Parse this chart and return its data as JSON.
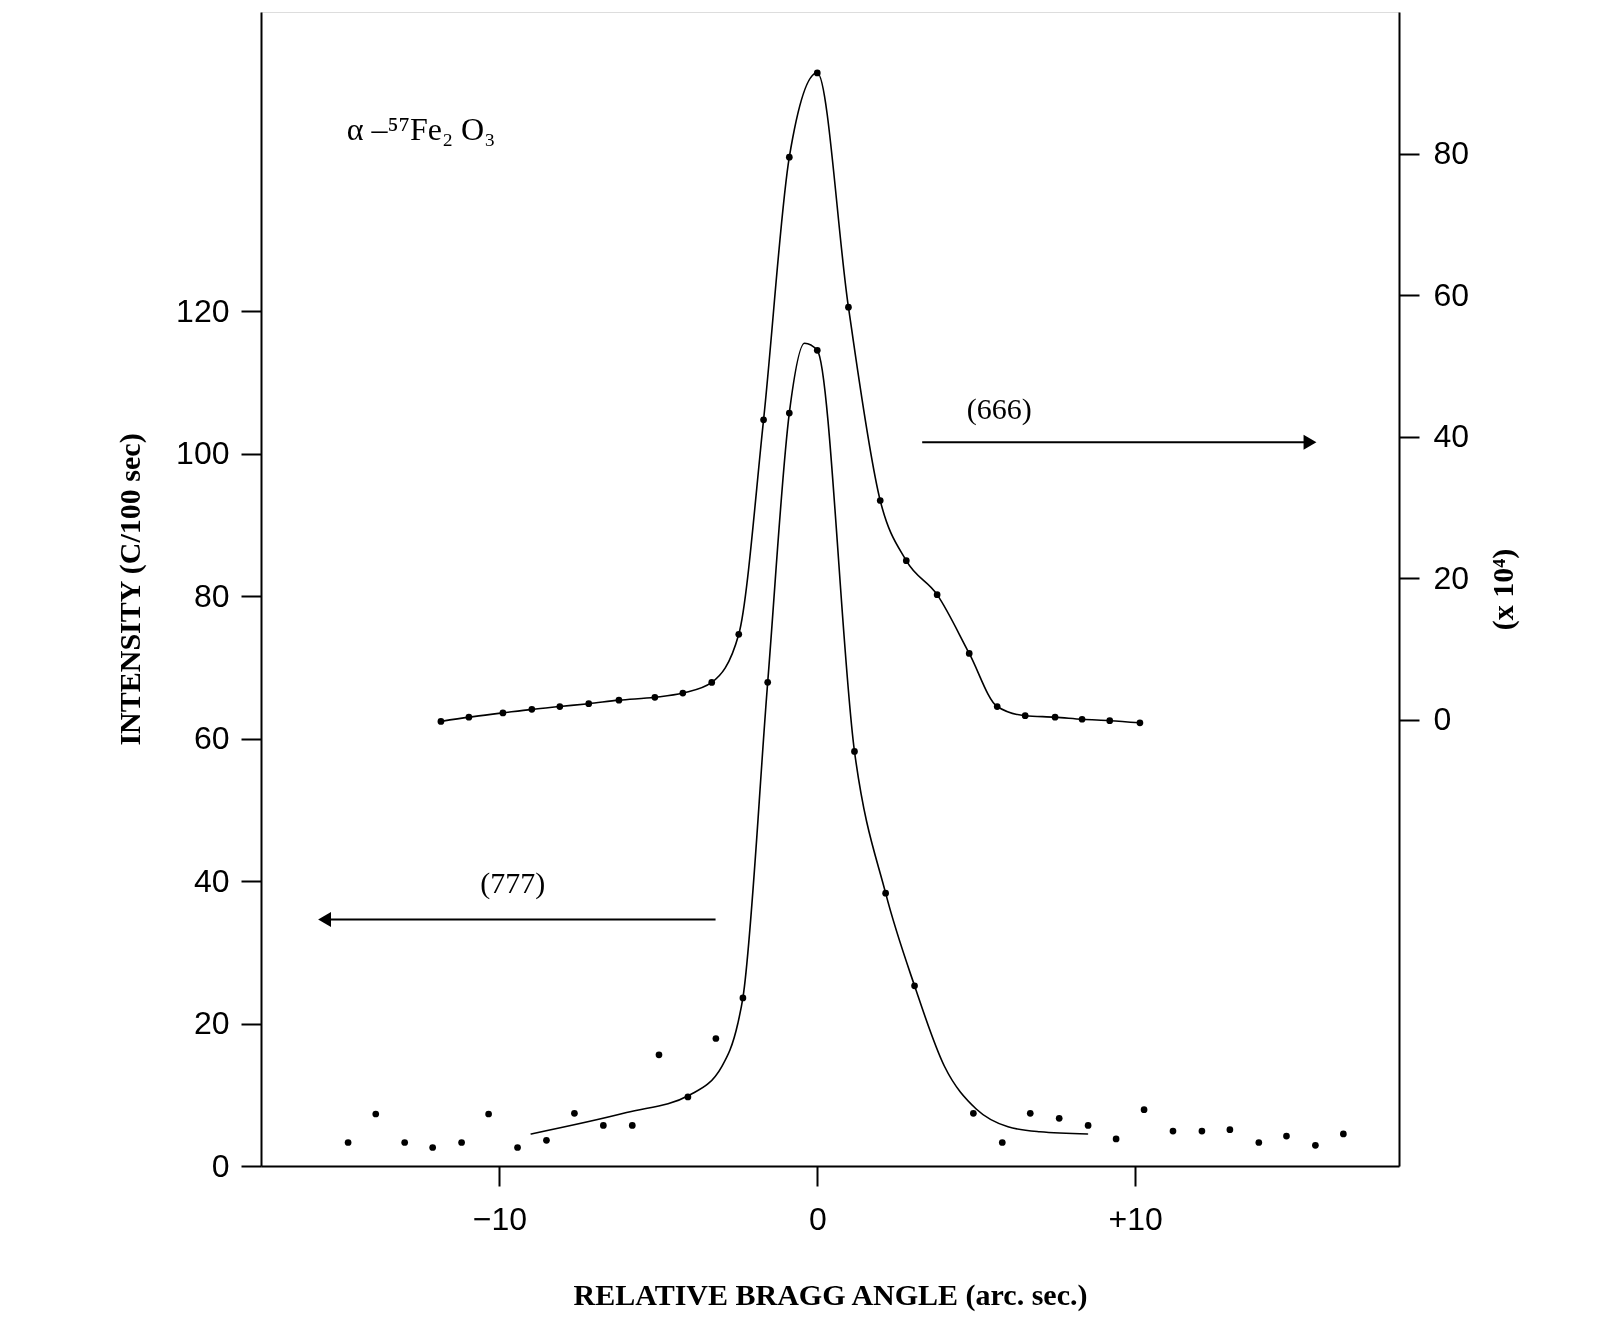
{
  "chart_data": {
    "type": "line",
    "xlabel": "RELATIVE BRAGG ANGLE (arc. sec.)",
    "ylabel": "INTENSITY (C/100 sec)",
    "y2label": "(x 10⁴)",
    "annotations": [
      "α –⁵⁷Fe₂ O₃",
      "(666)",
      "(777)"
    ],
    "xlim": [
      -17.5,
      18.3
    ],
    "xticks": [
      -10,
      0,
      {
        "value": 10,
        "label": "+10"
      }
    ],
    "ylim": [
      0,
      162
    ],
    "yticks": [
      0,
      20,
      40,
      60,
      80,
      100,
      120
    ],
    "y2lim": [
      -63,
      100
    ],
    "y2ticks": [
      0,
      20,
      40,
      60,
      80
    ],
    "series": [
      {
        "axis": "y2",
        "color": "#000000",
        "marker": "circle",
        "x": [
          -11.84,
          -10.96,
          -9.89,
          -8.98,
          -8.1,
          -7.19,
          -6.24,
          -5.11,
          -4.23,
          -3.32,
          -2.47,
          -1.69,
          -0.88,
          0,
          0.98,
          1.98,
          2.8,
          3.77,
          4.78,
          5.66,
          6.54,
          7.48,
          8.33,
          9.2,
          10.15
        ],
        "values": [
          -0.2,
          0.4,
          1.0,
          1.5,
          1.9,
          2.3,
          2.8,
          3.2,
          3.8,
          5.3,
          12.1,
          42.4,
          79.5,
          91.4,
          58.3,
          31.0,
          22.5,
          17.7,
          9.4,
          1.9,
          0.6,
          0.4,
          0.1,
          -0.1,
          -0.4
        ]
      },
      {
        "color": "#000000",
        "marker": "none",
        "x": [
          -9,
          -6,
          -4,
          -3,
          -2.5,
          -2.34,
          -1.56,
          -0.88,
          -0.4,
          0,
          1.17,
          2.15,
          3.06,
          4,
          5,
          6,
          7,
          8.5
        ],
        "values": [
          4.5,
          7.5,
          10,
          14,
          20,
          23.6,
          67.9,
          105.7,
          115.5,
          114.5,
          58.2,
          38.3,
          25.3,
          14,
          8,
          5.5,
          4.8,
          4.5
        ]
      },
      {
        "type": "scatter",
        "color": "#000000",
        "marker": "circle",
        "x": [
          -14.76,
          -13.89,
          -12.98,
          -12.1,
          -11.19,
          -10.34,
          -9.43,
          -8.52,
          -7.64,
          -6.73,
          -5.82,
          -4.98,
          -4.07,
          -3.19,
          -2.34,
          -1.56,
          -0.88,
          0,
          1.17,
          2.15,
          3.06,
          4.91,
          5.82,
          6.7,
          7.61,
          8.52,
          9.4,
          10.28,
          11.19,
          12.1,
          12.98,
          13.89,
          14.76,
          15.67,
          16.55
        ],
        "values": [
          3.3,
          7.3,
          3.3,
          2.6,
          3.3,
          7.3,
          2.6,
          3.6,
          7.4,
          5.7,
          5.7,
          15.6,
          9.7,
          17.9,
          23.6,
          67.9,
          105.7,
          114.5,
          58.2,
          38.3,
          25.3,
          7.4,
          3.3,
          7.4,
          6.7,
          5.7,
          3.8,
          7.9,
          4.9,
          4.9,
          5.1,
          3.3,
          4.2,
          2.9,
          4.5
        ]
      }
    ]
  }
}
